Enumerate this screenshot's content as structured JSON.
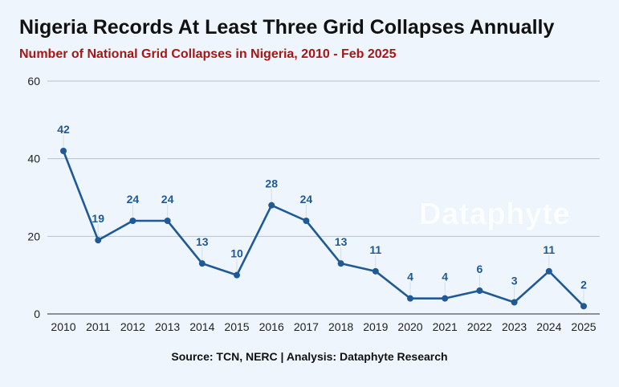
{
  "header": {
    "title": "Nigeria Records At Least Three Grid Collapses Annually",
    "subtitle": "Number of National Grid Collapses in Nigeria, 2010 - Feb 2025"
  },
  "footer": {
    "source": "Source: TCN, NERC | Analysis: Dataphyte Research"
  },
  "watermark": "Dataphyte",
  "colors": {
    "line": "#1f5a96",
    "label": "#1f5a96",
    "grid": "#b8c3cd",
    "subtitle": "#a31717"
  },
  "chart_data": {
    "type": "line",
    "title": "Nigeria Records At Least Three Grid Collapses Annually",
    "subtitle": "Number of National Grid Collapses in Nigeria, 2010 - Feb 2025",
    "xlabel": "",
    "ylabel": "",
    "categories": [
      "2010",
      "2011",
      "2012",
      "2013",
      "2014",
      "2015",
      "2016",
      "2017",
      "2018",
      "2019",
      "2020",
      "2021",
      "2022",
      "2023",
      "2024",
      "2025"
    ],
    "values": [
      42,
      19,
      24,
      24,
      13,
      10,
      28,
      24,
      13,
      11,
      4,
      4,
      6,
      3,
      11,
      2
    ],
    "ylim": [
      0,
      60
    ],
    "yticks": [
      0,
      20,
      40,
      60
    ],
    "grid": true,
    "data_labels": true
  }
}
